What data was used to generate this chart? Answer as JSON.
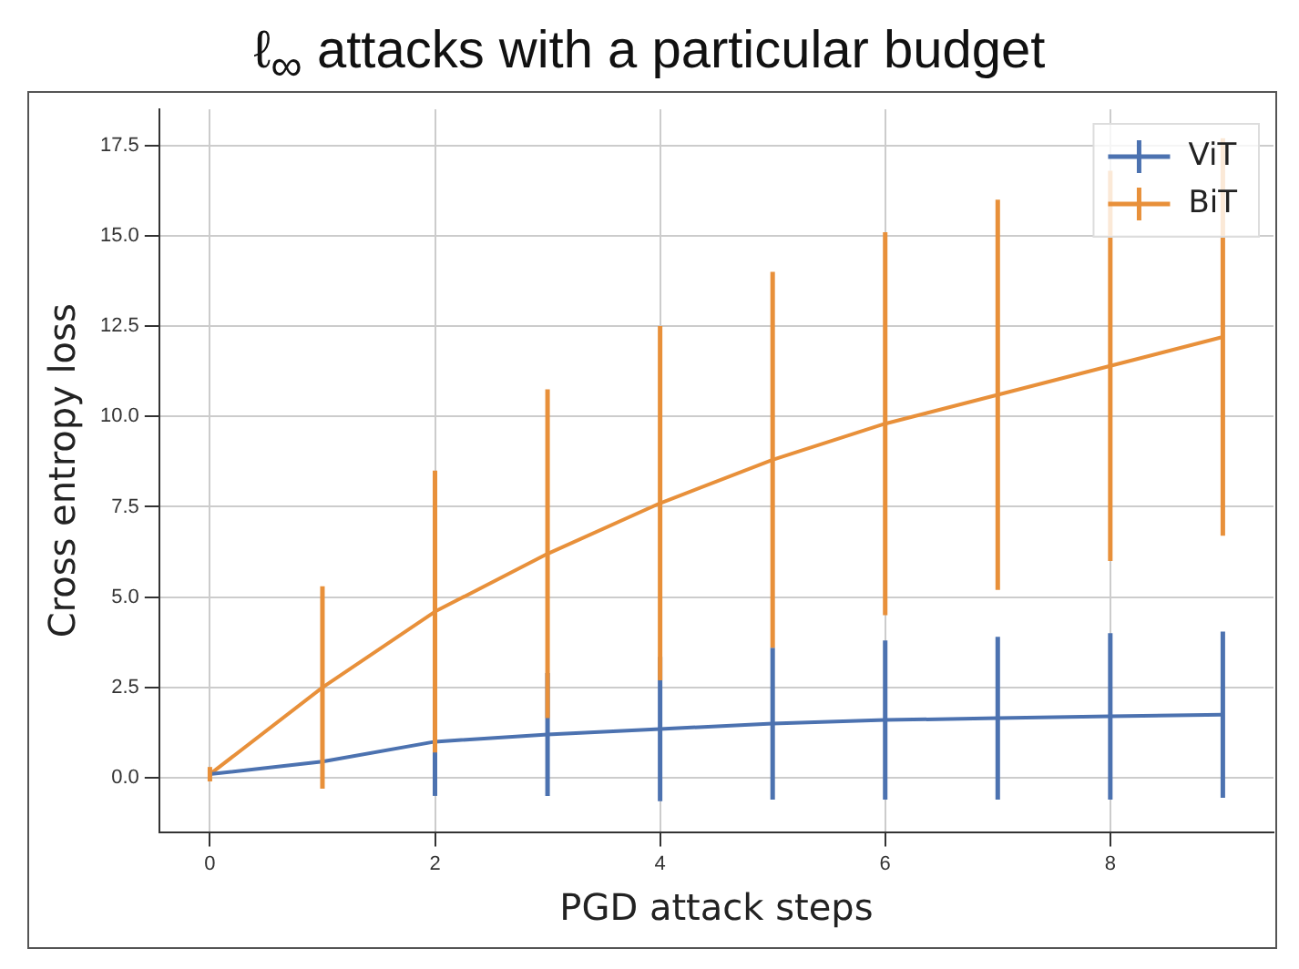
{
  "chart_data": {
    "type": "line",
    "title": "ℓ$_{∞}$ attacks with a particular budget",
    "xlabel": "PGD attack steps",
    "ylabel": "Cross entropy loss",
    "x": [
      0,
      1,
      2,
      3,
      4,
      5,
      6,
      7,
      8,
      9
    ],
    "series": [
      {
        "name": "ViT",
        "color": "#4c72b0",
        "values": [
          0.1,
          0.45,
          1.0,
          1.2,
          1.35,
          1.5,
          1.6,
          1.65,
          1.7,
          1.75
        ],
        "errors": [
          null,
          null,
          1.5,
          1.7,
          2.0,
          2.1,
          2.2,
          2.25,
          2.3,
          2.3
        ]
      },
      {
        "name": "BiT",
        "color": "#e8903a",
        "values": [
          0.1,
          2.5,
          4.6,
          6.2,
          7.6,
          8.8,
          9.8,
          10.6,
          11.4,
          12.2
        ],
        "errors": [
          0.2,
          2.8,
          3.9,
          4.55,
          4.9,
          5.2,
          5.3,
          5.4,
          5.4,
          5.5
        ]
      }
    ],
    "xlim": [
      -0.45,
      9.45
    ],
    "xticks": [
      0,
      2,
      4,
      6,
      8
    ],
    "ylim": [
      -1.5,
      18.5
    ],
    "yticks": [
      {
        "value": 0,
        "label": "0.0"
      },
      2.5,
      {
        "value": 5,
        "label": "5.0"
      },
      7.5,
      {
        "value": 10,
        "label": "10.0"
      },
      12.5,
      {
        "value": 15,
        "label": "15.0"
      },
      17.5
    ],
    "grid": true,
    "legend": "top right",
    "marker": "none"
  }
}
